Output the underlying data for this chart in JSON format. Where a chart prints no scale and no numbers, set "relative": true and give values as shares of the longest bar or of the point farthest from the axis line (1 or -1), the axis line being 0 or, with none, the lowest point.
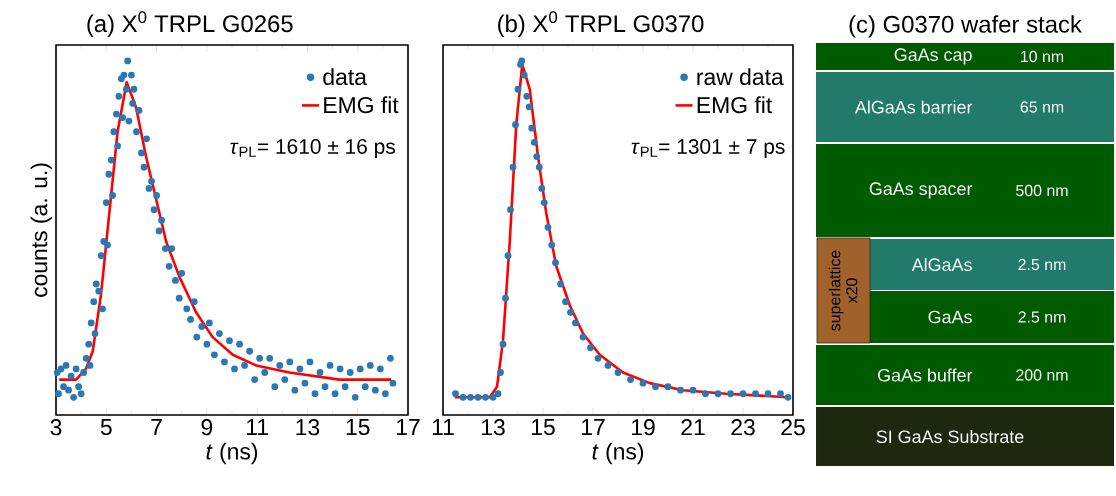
{
  "chart_data": [
    {
      "type": "scatter",
      "title": "(a) X$^{0}$ TRPL G0265",
      "xlabel": "*t* (ns)",
      "ylabel": "counts (a. u.)",
      "relative": true,
      "xlim": [
        3,
        17
      ],
      "xticks": [
        3,
        5,
        7,
        9,
        11,
        13,
        15,
        17
      ],
      "legend": "top right",
      "annotations": [
        "*τ*$_{PL}$= 1610 ± 16 ps"
      ],
      "series": [
        {
          "name": "data",
          "type": "scatter",
          "marker": "circle",
          "color": "#2a78b4",
          "x": [
            3.05,
            3.1,
            3.2,
            3.3,
            3.4,
            3.5,
            3.6,
            3.7,
            3.8,
            3.9,
            4.0,
            4.1,
            4.2,
            4.3,
            4.35,
            4.4,
            4.5,
            4.55,
            4.6,
            4.7,
            4.8,
            4.85,
            4.9,
            5.0,
            5.05,
            5.1,
            5.2,
            5.25,
            5.3,
            5.4,
            5.45,
            5.5,
            5.6,
            5.65,
            5.7,
            5.8,
            5.85,
            5.9,
            6.0,
            6.05,
            6.1,
            6.2,
            6.3,
            6.4,
            6.5,
            6.6,
            6.7,
            6.8,
            6.9,
            7.0,
            7.1,
            7.2,
            7.35,
            7.5,
            7.6,
            7.75,
            7.9,
            8.0,
            8.2,
            8.35,
            8.5,
            8.6,
            8.8,
            9.0,
            9.1,
            9.3,
            9.5,
            9.7,
            9.9,
            10.1,
            10.3,
            10.5,
            10.7,
            10.9,
            11.1,
            11.3,
            11.5,
            11.7,
            11.9,
            12.1,
            12.3,
            12.5,
            12.7,
            12.9,
            13.1,
            13.3,
            13.5,
            13.7,
            13.9,
            14.1,
            14.3,
            14.5,
            14.7,
            14.9,
            15.1,
            15.3,
            15.5,
            15.7,
            15.9,
            16.1,
            16.3,
            16.4
          ],
          "values": [
            0.12,
            0.06,
            0.13,
            0.08,
            0.14,
            0.07,
            0.11,
            0.05,
            0.13,
            0.08,
            0.06,
            0.12,
            0.16,
            0.2,
            0.14,
            0.26,
            0.32,
            0.23,
            0.37,
            0.35,
            0.45,
            0.3,
            0.49,
            0.6,
            0.48,
            0.68,
            0.72,
            0.62,
            0.8,
            0.85,
            0.76,
            0.9,
            0.95,
            0.84,
            0.96,
            0.92,
            1.0,
            0.83,
            0.96,
            0.88,
            0.92,
            0.8,
            0.86,
            0.74,
            0.7,
            0.78,
            0.64,
            0.66,
            0.58,
            0.62,
            0.52,
            0.55,
            0.47,
            0.42,
            0.47,
            0.38,
            0.33,
            0.4,
            0.3,
            0.27,
            0.32,
            0.22,
            0.25,
            0.2,
            0.26,
            0.17,
            0.23,
            0.15,
            0.21,
            0.13,
            0.2,
            0.14,
            0.18,
            0.1,
            0.16,
            0.12,
            0.16,
            0.08,
            0.14,
            0.1,
            0.15,
            0.07,
            0.13,
            0.09,
            0.15,
            0.06,
            0.12,
            0.08,
            0.14,
            0.06,
            0.13,
            0.08,
            0.12,
            0.05,
            0.13,
            0.08,
            0.14,
            0.07,
            0.13,
            0.06,
            0.16,
            0.09
          ]
        },
        {
          "name": "EMG fit",
          "type": "line",
          "marker": "none",
          "color": "#ff0000",
          "x": [
            3.13,
            3.8,
            4.19,
            4.46,
            4.79,
            5.12,
            5.45,
            5.81,
            6.18,
            6.58,
            6.98,
            7.38,
            7.91,
            8.57,
            9.23,
            10.03,
            10.96,
            12.28,
            14.27,
            16.33
          ],
          "values": [
            0.1,
            0.1,
            0.13,
            0.18,
            0.34,
            0.57,
            0.8,
            0.94,
            0.87,
            0.73,
            0.61,
            0.49,
            0.39,
            0.29,
            0.22,
            0.17,
            0.14,
            0.12,
            0.1,
            0.1
          ]
        }
      ]
    },
    {
      "type": "scatter",
      "title": "(b) X$^{0}$ TRPL G0370",
      "xlabel": "*t* (ns)",
      "relative": true,
      "xlim": [
        11,
        25
      ],
      "xticks": [
        11,
        13,
        15,
        17,
        19,
        21,
        23,
        25
      ],
      "legend": "top right",
      "annotations": [
        "*τ*$_{PL}$= 1301 ± 7 ps"
      ],
      "series": [
        {
          "name": "raw data",
          "type": "scatter",
          "marker": "circle",
          "color": "#2a78b4",
          "x": [
            11.5,
            11.8,
            12.1,
            12.4,
            12.7,
            13.0,
            13.2,
            13.3,
            13.4,
            13.5,
            13.6,
            13.7,
            13.8,
            13.9,
            14.0,
            14.1,
            14.15,
            14.25,
            14.35,
            14.45,
            14.55,
            14.65,
            14.75,
            14.85,
            14.95,
            15.05,
            15.2,
            15.35,
            15.5,
            15.7,
            15.9,
            16.1,
            16.3,
            16.6,
            16.9,
            17.2,
            17.6,
            18.0,
            18.5,
            19.0,
            19.5,
            20.0,
            20.5,
            21.0,
            21.5,
            22.0,
            22.5,
            23.0,
            23.5,
            24.0,
            24.5,
            24.8
          ],
          "values": [
            0.06,
            0.05,
            0.05,
            0.05,
            0.05,
            0.05,
            0.06,
            0.12,
            0.2,
            0.33,
            0.45,
            0.58,
            0.7,
            0.82,
            0.92,
            0.99,
            1.0,
            0.96,
            0.9,
            0.87,
            0.81,
            0.77,
            0.73,
            0.7,
            0.64,
            0.6,
            0.53,
            0.48,
            0.43,
            0.37,
            0.32,
            0.29,
            0.26,
            0.22,
            0.19,
            0.16,
            0.14,
            0.12,
            0.1,
            0.09,
            0.08,
            0.08,
            0.07,
            0.07,
            0.06,
            0.06,
            0.06,
            0.06,
            0.06,
            0.06,
            0.06,
            0.05
          ]
        },
        {
          "name": "EMG fit",
          "type": "line",
          "marker": "none",
          "color": "#ff0000",
          "x": [
            11.47,
            12.87,
            13.16,
            13.4,
            13.67,
            13.93,
            14.17,
            14.47,
            14.8,
            15.13,
            15.53,
            16.07,
            16.6,
            17.27,
            18.2,
            19.27,
            20.6,
            22.33,
            24.8
          ],
          "values": [
            0.05,
            0.05,
            0.08,
            0.21,
            0.49,
            0.82,
            0.99,
            0.92,
            0.73,
            0.57,
            0.42,
            0.31,
            0.23,
            0.17,
            0.12,
            0.09,
            0.07,
            0.06,
            0.05
          ]
        }
      ]
    },
    {
      "type": "other",
      "title": "(c) G0370 wafer stack",
      "annotations": [
        "GaAs cap",
        "10 nm",
        "AlGaAs barrier",
        "65 nm",
        "GaAs spacer",
        "500 nm",
        "AlGaAs",
        "2.5 nm",
        "GaAs",
        "2.5 nm",
        "GaAs buffer",
        "200 nm",
        "SI GaAs Substrate",
        "superlattice",
        "x20"
      ]
    }
  ]
}
